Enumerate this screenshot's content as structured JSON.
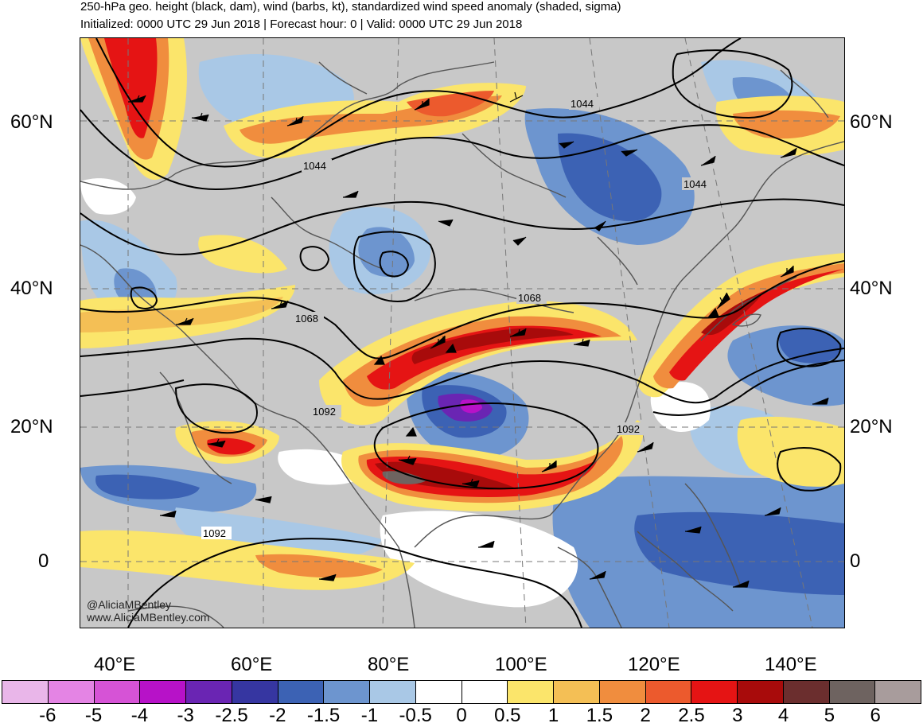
{
  "title": {
    "line1": "250-hPa geo. height (black, dam), wind (barbs, kt), standardized wind speed anomaly (shaded, sigma)",
    "line2": "Initialized: 0000 UTC 29 Jun 2018 | Forecast hour: 0 | Valid: 0000 UTC 29 Jun 2018"
  },
  "lat_labels": [
    "60°N",
    "40°N",
    "20°N",
    "0"
  ],
  "lon_labels": [
    "40°E",
    "60°E",
    "80°E",
    "100°E",
    "120°E",
    "140°E"
  ],
  "contour_labels": [
    "1044",
    "1044",
    "1044",
    "1068",
    "1068",
    "1092",
    "1092",
    "1092"
  ],
  "credits": {
    "handle": "@AliciaMBentley",
    "website": "www.AliciaMBentley.com"
  },
  "colorbar": {
    "labels": [
      "-6",
      "-5",
      "-4",
      "-3",
      "-2.5",
      "-2",
      "-1.5",
      "-1",
      "-0.5",
      "0",
      "0.5",
      "1",
      "1.5",
      "2",
      "2.5",
      "3",
      "4",
      "5",
      "6"
    ],
    "colors": [
      "#e9b6e9",
      "#e484e4",
      "#d653d6",
      "#b712c8",
      "#6a25b3",
      "#3636a1",
      "#3c62b4",
      "#6d95cf",
      "#a9c8e6",
      "#ffffff",
      "#ffffff",
      "#fbe56b",
      "#f4bf55",
      "#f08d3e",
      "#ec5a2d",
      "#e51414",
      "#a80b0b",
      "#6b2e2e",
      "#6e6360",
      "#a89c9c"
    ]
  }
}
